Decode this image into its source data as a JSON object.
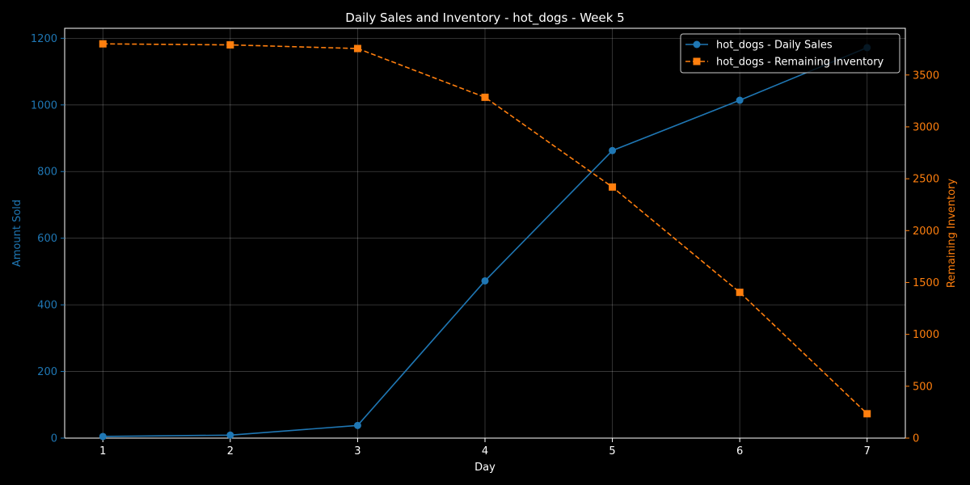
{
  "chart_data": {
    "type": "line",
    "title": "Daily Sales and Inventory - hot_dogs - Week 5",
    "xlabel": "Day",
    "ylabel_left": "Amount Sold",
    "ylabel_right": "Remaining Inventory",
    "x": [
      1,
      2,
      3,
      4,
      5,
      6,
      7
    ],
    "xlim": [
      0.7,
      7.3
    ],
    "ylim_left": [
      0,
      1230
    ],
    "ylim_right": [
      0,
      3950
    ],
    "yticks_left": [
      0,
      200,
      400,
      600,
      800,
      1000,
      1200
    ],
    "yticks_right": [
      0,
      500,
      1000,
      1500,
      2000,
      2500,
      3000,
      3500
    ],
    "grid": true,
    "legend_position": "top-right",
    "series": [
      {
        "name": "hot_dogs - Daily Sales",
        "axis": "left",
        "color": "#1f77b4",
        "marker": "circle",
        "linestyle": "solid",
        "values": [
          5,
          9,
          38,
          472,
          863,
          1014,
          1172
        ]
      },
      {
        "name": "hot_dogs - Remaining Inventory",
        "axis": "right",
        "color": "#ff7f0e",
        "marker": "square",
        "linestyle": "dashed",
        "values": [
          3800,
          3790,
          3755,
          3285,
          2420,
          1405,
          235
        ]
      }
    ]
  }
}
